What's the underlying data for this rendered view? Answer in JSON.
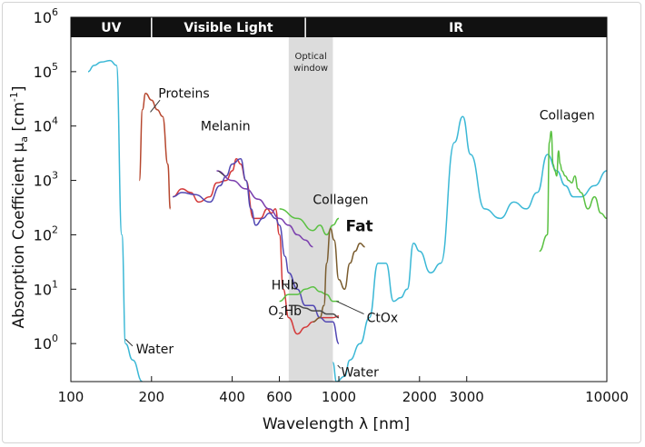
{
  "chart_data": {
    "type": "line",
    "xlabel_main": "Wavelength λ",
    "xlabel_unit": "[nm]",
    "ylabel_main": "Absorption Coefficient μ",
    "ylabel_sub": "a",
    "ylabel_unit": "[cm",
    "ylabel_exp": "-1",
    "ylabel_close": "]",
    "x_scale": "log",
    "y_scale": "log",
    "xlim": [
      100,
      10000
    ],
    "ylim": [
      0.2,
      1000000
    ],
    "x_ticks": [
      {
        "value": 100,
        "label": "100"
      },
      {
        "value": 200,
        "label": "200"
      },
      {
        "value": 400,
        "label": "400"
      },
      {
        "value": 600,
        "label": "600"
      },
      {
        "value": 1000,
        "label": "1000"
      },
      {
        "value": 2000,
        "label": "2000"
      },
      {
        "value": 3000,
        "label": "3000"
      },
      {
        "value": 10000,
        "label": "10000"
      }
    ],
    "y_ticks": [
      {
        "value": 1,
        "base": "10",
        "exp": "0"
      },
      {
        "value": 10,
        "base": "10",
        "exp": "1"
      },
      {
        "value": 100,
        "base": "10",
        "exp": "2"
      },
      {
        "value": 1000,
        "base": "10",
        "exp": "3"
      },
      {
        "value": 10000,
        "base": "10",
        "exp": "4"
      },
      {
        "value": 100000,
        "base": "10",
        "exp": "5"
      },
      {
        "value": 1000000,
        "base": "10",
        "exp": "6"
      }
    ],
    "grid": false,
    "bands": [
      {
        "label": "UV",
        "x0": 100,
        "x1": 200
      },
      {
        "label": "Visible Light",
        "x0": 200,
        "x1": 750
      },
      {
        "label": "IR",
        "x0": 750,
        "x1": 10000
      }
    ],
    "shaded_region": {
      "label_line1": "Optical",
      "label_line2": "window",
      "x0": 650,
      "x1": 950
    },
    "series": [
      {
        "key": "water-uv",
        "color": "#3bb8d6",
        "points": [
          [
            116,
            100000
          ],
          [
            122,
            130000
          ],
          [
            130,
            150000
          ],
          [
            140,
            160000
          ],
          [
            148,
            130000
          ],
          [
            155,
            100
          ],
          [
            160,
            1
          ],
          [
            170,
            0.5
          ],
          [
            185,
            0.2
          ]
        ]
      },
      {
        "key": "water-ir",
        "color": "#3bb8d6",
        "points": [
          [
            950,
            0.45
          ],
          [
            980,
            0.2
          ],
          [
            1050,
            0.25
          ],
          [
            1100,
            0.5
          ],
          [
            1200,
            1
          ],
          [
            1300,
            3
          ],
          [
            1400,
            30
          ],
          [
            1500,
            30
          ],
          [
            1600,
            6
          ],
          [
            1700,
            7
          ],
          [
            1800,
            10
          ],
          [
            1900,
            70
          ],
          [
            2000,
            50
          ],
          [
            2200,
            20
          ],
          [
            2400,
            30
          ],
          [
            2700,
            5000
          ],
          [
            2900,
            15000
          ],
          [
            3100,
            3000
          ],
          [
            3500,
            300
          ],
          [
            4000,
            200
          ],
          [
            4500,
            400
          ],
          [
            5000,
            300
          ],
          [
            5500,
            600
          ],
          [
            6000,
            3000
          ],
          [
            6500,
            1500
          ],
          [
            7000,
            800
          ],
          [
            7500,
            500
          ],
          [
            8000,
            500
          ],
          [
            9000,
            800
          ],
          [
            10000,
            1500
          ]
        ]
      },
      {
        "key": "proteins",
        "color": "#b6472e",
        "points": [
          [
            180,
            1000
          ],
          [
            185,
            20000
          ],
          [
            190,
            40000
          ],
          [
            200,
            30000
          ],
          [
            210,
            20000
          ],
          [
            220,
            15000
          ],
          [
            230,
            2000
          ],
          [
            235,
            300
          ]
        ]
      },
      {
        "key": "hb-red",
        "color": "#d43a3a",
        "points": [
          [
            240,
            500
          ],
          [
            260,
            700
          ],
          [
            280,
            600
          ],
          [
            300,
            400
          ],
          [
            330,
            500
          ],
          [
            350,
            900
          ],
          [
            380,
            1000
          ],
          [
            400,
            1500
          ],
          [
            415,
            2500
          ],
          [
            430,
            2000
          ],
          [
            450,
            1000
          ],
          [
            480,
            200
          ],
          [
            510,
            200
          ],
          [
            540,
            300
          ],
          [
            560,
            250
          ],
          [
            580,
            300
          ],
          [
            600,
            100
          ],
          [
            620,
            10
          ],
          [
            650,
            3
          ],
          [
            700,
            1.5
          ],
          [
            750,
            2
          ],
          [
            800,
            2.5
          ],
          [
            850,
            3
          ],
          [
            900,
            3
          ],
          [
            950,
            3
          ],
          [
            1000,
            3.2
          ]
        ]
      },
      {
        "key": "hb-blue",
        "color": "#5248b3",
        "points": [
          [
            240,
            500
          ],
          [
            260,
            600
          ],
          [
            290,
            550
          ],
          [
            330,
            400
          ],
          [
            360,
            800
          ],
          [
            380,
            1200
          ],
          [
            400,
            2000
          ],
          [
            430,
            2500
          ],
          [
            450,
            1000
          ],
          [
            470,
            300
          ],
          [
            490,
            150
          ],
          [
            520,
            200
          ],
          [
            550,
            250
          ],
          [
            580,
            200
          ],
          [
            600,
            150
          ],
          [
            630,
            40
          ],
          [
            650,
            20
          ],
          [
            700,
            10
          ],
          [
            750,
            5
          ],
          [
            800,
            5
          ],
          [
            850,
            3
          ],
          [
            900,
            2.5
          ],
          [
            950,
            2.5
          ],
          [
            1000,
            1
          ]
        ]
      },
      {
        "key": "melanin",
        "color": "#7b3fae",
        "points": [
          [
            350,
            1500
          ],
          [
            400,
            1000
          ],
          [
            450,
            700
          ],
          [
            500,
            450
          ],
          [
            550,
            300
          ],
          [
            600,
            200
          ],
          [
            650,
            150
          ],
          [
            700,
            100
          ],
          [
            750,
            80
          ],
          [
            800,
            60
          ]
        ]
      },
      {
        "key": "collagen-vis",
        "color": "#5ac142",
        "points": [
          [
            600,
            300
          ],
          [
            700,
            200
          ],
          [
            800,
            120
          ],
          [
            850,
            150
          ],
          [
            900,
            100
          ],
          [
            950,
            150
          ],
          [
            1000,
            200
          ]
        ]
      },
      {
        "key": "collagen-nir",
        "color": "#5ac142",
        "points": [
          [
            600,
            6
          ],
          [
            650,
            8
          ],
          [
            700,
            8
          ],
          [
            750,
            10
          ],
          [
            800,
            11
          ],
          [
            850,
            9
          ],
          [
            900,
            8
          ],
          [
            950,
            6
          ],
          [
            1000,
            6
          ]
        ]
      },
      {
        "key": "collagen-ir",
        "color": "#5ac142",
        "points": [
          [
            5600,
            50
          ],
          [
            6000,
            100
          ],
          [
            6100,
            5000
          ],
          [
            6200,
            8000
          ],
          [
            6300,
            2000
          ],
          [
            6400,
            1500
          ],
          [
            6500,
            1200
          ],
          [
            6600,
            3500
          ],
          [
            6700,
            2000
          ],
          [
            6800,
            1500
          ],
          [
            7000,
            1200
          ],
          [
            7200,
            1000
          ],
          [
            7400,
            900
          ],
          [
            7600,
            1200
          ],
          [
            7800,
            700
          ],
          [
            8000,
            600
          ],
          [
            8500,
            300
          ],
          [
            9000,
            500
          ],
          [
            9500,
            250
          ],
          [
            10000,
            200
          ]
        ]
      },
      {
        "key": "fat",
        "color": "#7a5c2e",
        "points": [
          [
            800,
            2.5
          ],
          [
            850,
            3
          ],
          [
            880,
            5
          ],
          [
            900,
            30
          ],
          [
            930,
            130
          ],
          [
            960,
            80
          ],
          [
            1000,
            15
          ],
          [
            1050,
            10
          ],
          [
            1100,
            30
          ],
          [
            1150,
            50
          ],
          [
            1200,
            70
          ],
          [
            1250,
            60
          ]
        ]
      },
      {
        "key": "ctox",
        "color": "#4a4a4a",
        "points": [
          [
            650,
            5
          ],
          [
            700,
            5
          ],
          [
            750,
            4.5
          ],
          [
            800,
            4
          ],
          [
            850,
            4
          ],
          [
            900,
            3.5
          ],
          [
            950,
            3.5
          ],
          [
            1000,
            3
          ]
        ]
      }
    ],
    "annotations": [
      {
        "text": "Proteins",
        "style": "anno",
        "lx": 212,
        "ly": 40000,
        "leader": [
          [
            215,
            30000
          ],
          [
            198,
            18000
          ]
        ]
      },
      {
        "text": "Melanin",
        "style": "anno",
        "lx": 305,
        "ly": 10000,
        "leader": [
          [
            355,
            1500
          ],
          [
            375,
            1200
          ]
        ]
      },
      {
        "text": "Collagen",
        "style": "anno",
        "lx": 800,
        "ly": 450,
        "leader": null
      },
      {
        "text": "Fat",
        "style": "anno-big",
        "lx": 1060,
        "ly": 140,
        "leader": null
      },
      {
        "text": "HHb",
        "style": "anno",
        "lx": 560,
        "ly": 12,
        "leader": [
          [
            630,
            12
          ],
          [
            650,
            10
          ]
        ]
      },
      {
        "text": "CtOx",
        "style": "anno",
        "lx": 1270,
        "ly": 3,
        "leader": [
          [
            1240,
            3.5
          ],
          [
            980,
            6
          ]
        ]
      },
      {
        "text": "Water",
        "style": "anno",
        "lx": 175,
        "ly": 0.8,
        "leader": [
          [
            170,
            0.9
          ],
          [
            160,
            1.2
          ]
        ]
      },
      {
        "text": "Water",
        "style": "anno",
        "lx": 1020,
        "ly": 0.3,
        "leader": [
          [
            1015,
            0.35
          ],
          [
            990,
            0.4
          ]
        ]
      },
      {
        "text": "Collagen",
        "style": "anno",
        "lx": 5600,
        "ly": 16000,
        "leader": null
      }
    ],
    "o2hb_label": {
      "o": "O",
      "sub": "2",
      "rest": "Hb",
      "lx": 545,
      "ly": 4,
      "leader": [
        [
          610,
          4.5
        ],
        [
          640,
          5
        ]
      ]
    }
  }
}
